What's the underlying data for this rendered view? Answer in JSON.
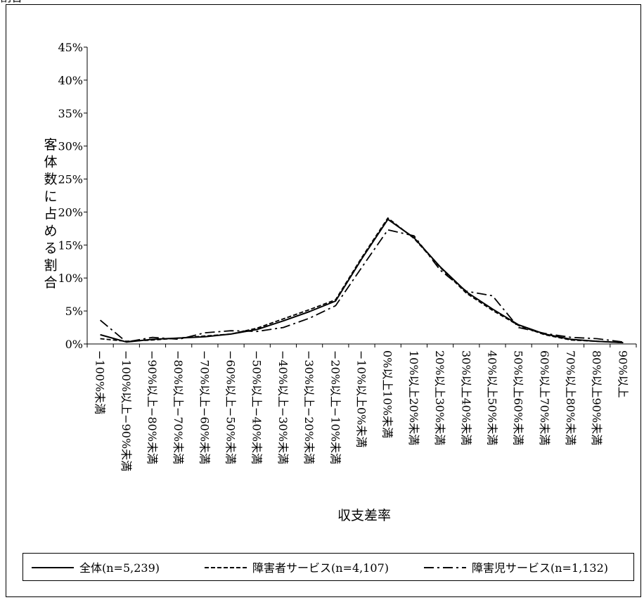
{
  "header_fragment": "割合",
  "chart_data": {
    "type": "line",
    "title": "",
    "xlabel": "収支差率",
    "ylabel": "客体数に占める割合",
    "ylim": [
      0,
      45
    ],
    "yticks": [
      "0%",
      "5%",
      "10%",
      "15%",
      "20%",
      "25%",
      "30%",
      "35%",
      "40%",
      "45%"
    ],
    "categories": [
      "−100%未満",
      "−100%以上−90%未満",
      "−90%以上−80%未満",
      "−80%以上−70%未満",
      "−70%以上−60%未満",
      "−60%以上−50%未満",
      "−50%以上−40%未満",
      "−40%以上−30%未満",
      "−30%以上−20%未満",
      "−20%以上−10%未満",
      "−10%以上0%未満",
      "0%以上10%未満",
      "10%以上20%未満",
      "20%以上30%未満",
      "30%以上40%未満",
      "40%以上50%未満",
      "50%以上60%未満",
      "60%以上70%未満",
      "70%以上80%未満",
      "80%以上90%未満",
      "90%以上"
    ],
    "series": [
      {
        "name": "全体(n=5,239)",
        "dash": "solid",
        "color": "#000000",
        "values": [
          1.4,
          0.3,
          0.7,
          0.9,
          1.1,
          1.5,
          2.2,
          3.5,
          4.9,
          6.5,
          12.9,
          18.9,
          16.1,
          11.7,
          7.9,
          5.3,
          2.9,
          1.5,
          0.7,
          0.4,
          0.2
        ]
      },
      {
        "name": "障害者サービス(n=4,107)",
        "dash": "dashed",
        "color": "#000000",
        "values": [
          0.8,
          0.4,
          0.6,
          0.9,
          1.2,
          1.5,
          2.4,
          3.8,
          5.2,
          6.7,
          13.1,
          19.1,
          16.0,
          11.6,
          7.7,
          5.1,
          2.8,
          1.4,
          0.6,
          0.4,
          0.2
        ]
      },
      {
        "name": "障害児サービス(n=1,132)",
        "dash": "dashdot",
        "color": "#000000",
        "values": [
          3.6,
          0.3,
          1.0,
          0.7,
          1.7,
          2.0,
          1.9,
          2.5,
          3.9,
          5.8,
          11.6,
          17.3,
          16.4,
          11.2,
          8.0,
          7.3,
          2.5,
          1.6,
          1.0,
          0.8,
          0.3
        ]
      }
    ],
    "grid": false,
    "legend_position": "bottom"
  }
}
